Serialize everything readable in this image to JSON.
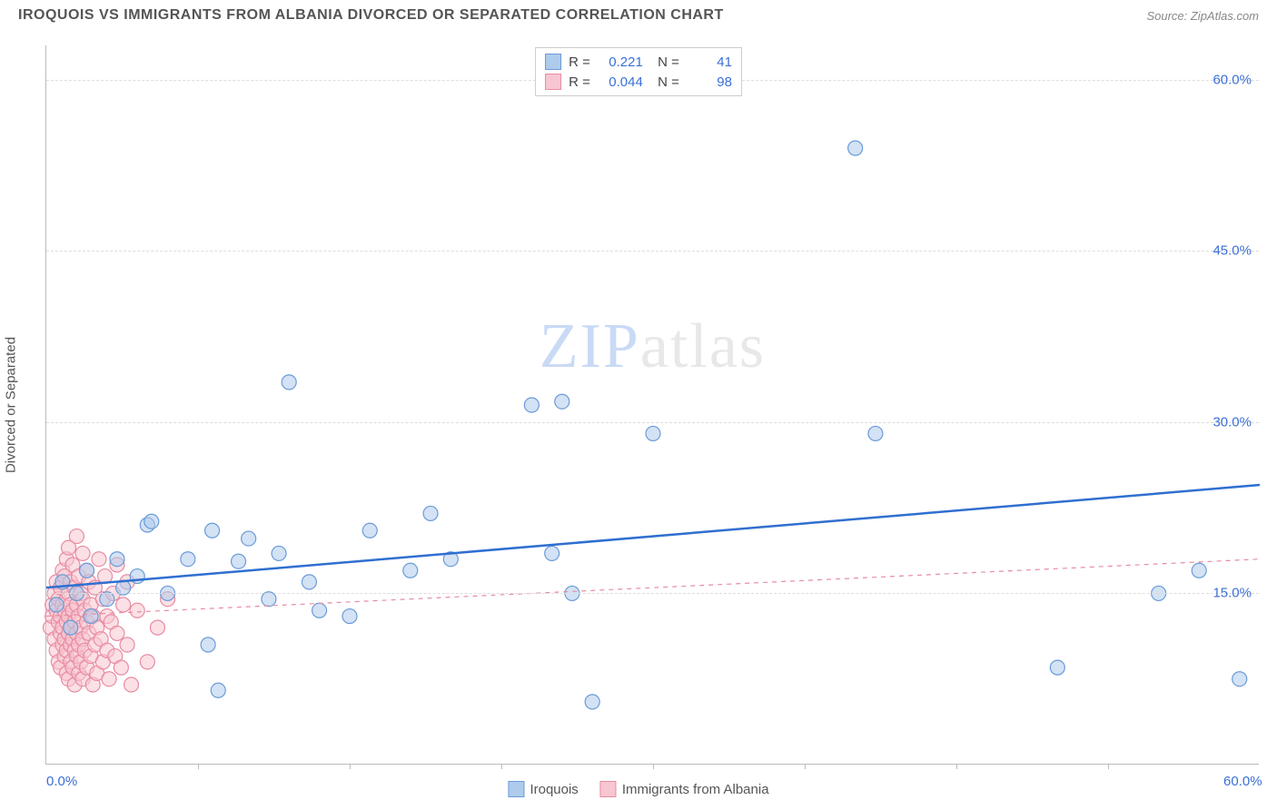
{
  "title": "IROQUOIS VS IMMIGRANTS FROM ALBANIA DIVORCED OR SEPARATED CORRELATION CHART",
  "source": "Source: ZipAtlas.com",
  "ylabel": "Divorced or Separated",
  "watermark_zip": "ZIP",
  "watermark_atlas": "atlas",
  "chart": {
    "type": "scatter",
    "xlim": [
      0,
      60
    ],
    "ylim": [
      0,
      63
    ],
    "x_ticks": [
      0,
      60
    ],
    "x_tick_labels": [
      "0.0%",
      "60.0%"
    ],
    "x_minor_ticks": [
      7.5,
      15,
      22.5,
      30,
      37.5,
      45,
      52.5
    ],
    "y_ticks": [
      15,
      30,
      45,
      60
    ],
    "y_tick_labels": [
      "15.0%",
      "30.0%",
      "45.0%",
      "60.0%"
    ],
    "background_color": "#ffffff",
    "grid_color": "#dddddd",
    "axis_color": "#bbbbbb",
    "marker_radius": 8,
    "marker_stroke_width": 1.2,
    "series": [
      {
        "name": "Iroquois",
        "fill": "#aecbeb",
        "stroke": "#6a9bd8",
        "fill_opacity": 0.55,
        "trend": {
          "x1": 0,
          "y1": 15.5,
          "x2": 60,
          "y2": 24.5,
          "color": "#2f6fd0",
          "width": 2.5,
          "dash": "none"
        },
        "R": "0.221",
        "N": "41",
        "points": [
          [
            0.5,
            14
          ],
          [
            0.8,
            16
          ],
          [
            1.2,
            12
          ],
          [
            1.5,
            15
          ],
          [
            2,
            17
          ],
          [
            2.2,
            13
          ],
          [
            3,
            14.5
          ],
          [
            3.5,
            18
          ],
          [
            3.8,
            15.5
          ],
          [
            4.5,
            16.5
          ],
          [
            5,
            21
          ],
          [
            5.2,
            21.3
          ],
          [
            6,
            15
          ],
          [
            7,
            18
          ],
          [
            8,
            10.5
          ],
          [
            8.2,
            20.5
          ],
          [
            8.5,
            6.5
          ],
          [
            9.5,
            17.8
          ],
          [
            10,
            19.8
          ],
          [
            11,
            14.5
          ],
          [
            11.5,
            18.5
          ],
          [
            12,
            33.5
          ],
          [
            13,
            16
          ],
          [
            13.5,
            13.5
          ],
          [
            15,
            13
          ],
          [
            16,
            20.5
          ],
          [
            18,
            17
          ],
          [
            19,
            22
          ],
          [
            20,
            18
          ],
          [
            24,
            31.5
          ],
          [
            25,
            18.5
          ],
          [
            25.5,
            31.8
          ],
          [
            26,
            15
          ],
          [
            27,
            5.5
          ],
          [
            30,
            29
          ],
          [
            40,
            54
          ],
          [
            41,
            29
          ],
          [
            50,
            8.5
          ],
          [
            55,
            15
          ],
          [
            57,
            17
          ],
          [
            59,
            7.5
          ]
        ]
      },
      {
        "name": "Immigrants from Albania",
        "fill": "#f7c6d0",
        "stroke": "#e88ca3",
        "fill_opacity": 0.55,
        "trend": {
          "x1": 0,
          "y1": 13,
          "x2": 60,
          "y2": 18,
          "color": "#e88ca3",
          "width": 1.2,
          "dash": "5,5"
        },
        "R": "0.044",
        "N": "98",
        "points": [
          [
            0.2,
            12
          ],
          [
            0.3,
            13
          ],
          [
            0.3,
            14
          ],
          [
            0.4,
            11
          ],
          [
            0.4,
            15
          ],
          [
            0.5,
            10
          ],
          [
            0.5,
            13.5
          ],
          [
            0.5,
            16
          ],
          [
            0.6,
            9
          ],
          [
            0.6,
            12.5
          ],
          [
            0.6,
            14.5
          ],
          [
            0.7,
            8.5
          ],
          [
            0.7,
            11.5
          ],
          [
            0.7,
            13
          ],
          [
            0.7,
            15.5
          ],
          [
            0.8,
            10.5
          ],
          [
            0.8,
            12
          ],
          [
            0.8,
            14
          ],
          [
            0.8,
            17
          ],
          [
            0.9,
            9.5
          ],
          [
            0.9,
            11
          ],
          [
            0.9,
            13.5
          ],
          [
            0.9,
            16.5
          ],
          [
            1.0,
            8
          ],
          [
            1.0,
            10
          ],
          [
            1.0,
            12.5
          ],
          [
            1.0,
            14.5
          ],
          [
            1.0,
            18
          ],
          [
            1.1,
            7.5
          ],
          [
            1.1,
            11.5
          ],
          [
            1.1,
            13
          ],
          [
            1.1,
            15
          ],
          [
            1.1,
            19
          ],
          [
            1.2,
            9
          ],
          [
            1.2,
            10.5
          ],
          [
            1.2,
            12
          ],
          [
            1.2,
            14
          ],
          [
            1.2,
            16
          ],
          [
            1.3,
            8.5
          ],
          [
            1.3,
            11
          ],
          [
            1.3,
            13.5
          ],
          [
            1.3,
            17.5
          ],
          [
            1.4,
            7
          ],
          [
            1.4,
            10
          ],
          [
            1.4,
            12.5
          ],
          [
            1.4,
            15.5
          ],
          [
            1.5,
            9.5
          ],
          [
            1.5,
            11.5
          ],
          [
            1.5,
            14
          ],
          [
            1.5,
            20
          ],
          [
            1.6,
            8
          ],
          [
            1.6,
            10.5
          ],
          [
            1.6,
            13
          ],
          [
            1.6,
            16.5
          ],
          [
            1.7,
            9
          ],
          [
            1.7,
            12
          ],
          [
            1.7,
            15
          ],
          [
            1.8,
            7.5
          ],
          [
            1.8,
            11
          ],
          [
            1.8,
            14.5
          ],
          [
            1.8,
            18.5
          ],
          [
            1.9,
            10
          ],
          [
            1.9,
            13.5
          ],
          [
            2.0,
            8.5
          ],
          [
            2.0,
            12.5
          ],
          [
            2.0,
            17
          ],
          [
            2.1,
            11.5
          ],
          [
            2.1,
            16
          ],
          [
            2.2,
            9.5
          ],
          [
            2.2,
            14
          ],
          [
            2.3,
            7
          ],
          [
            2.3,
            13
          ],
          [
            2.4,
            10.5
          ],
          [
            2.4,
            15.5
          ],
          [
            2.5,
            8
          ],
          [
            2.5,
            12
          ],
          [
            2.6,
            18
          ],
          [
            2.7,
            11
          ],
          [
            2.8,
            9
          ],
          [
            2.8,
            14.5
          ],
          [
            2.9,
            16.5
          ],
          [
            3.0,
            10
          ],
          [
            3.0,
            13
          ],
          [
            3.1,
            7.5
          ],
          [
            3.2,
            12.5
          ],
          [
            3.3,
            15
          ],
          [
            3.4,
            9.5
          ],
          [
            3.5,
            11.5
          ],
          [
            3.5,
            17.5
          ],
          [
            3.7,
            8.5
          ],
          [
            3.8,
            14
          ],
          [
            4.0,
            10.5
          ],
          [
            4.0,
            16
          ],
          [
            4.2,
            7
          ],
          [
            4.5,
            13.5
          ],
          [
            5.0,
            9
          ],
          [
            5.5,
            12
          ],
          [
            6.0,
            14.5
          ]
        ]
      }
    ]
  },
  "stats_legend": {
    "r_label": "R =",
    "n_label": "N ="
  },
  "bottom_legend": {
    "items": [
      "Iroquois",
      "Immigrants from Albania"
    ]
  }
}
